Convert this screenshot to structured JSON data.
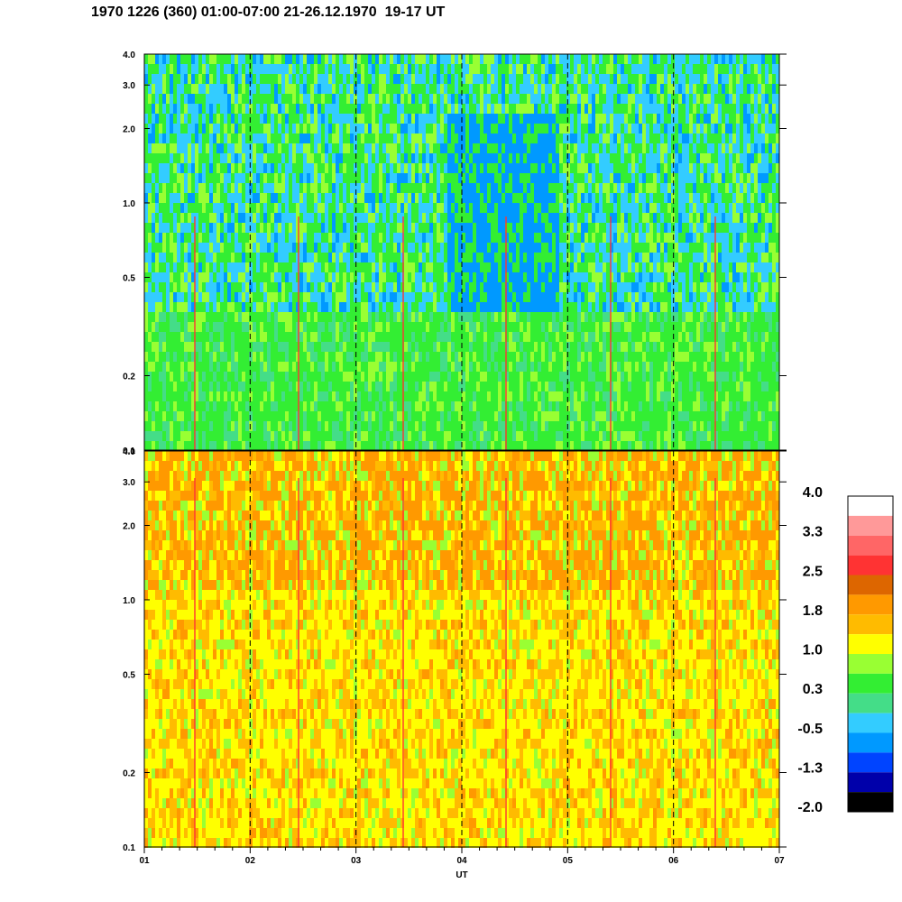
{
  "header": {
    "title": "1970 1226 (360) 01:00-07:00 21-26.12.1970  19-17 UT"
  },
  "chart_data": [
    {
      "type": "heatmap",
      "name": "upper-panel",
      "y_axis": {
        "scale": "log",
        "ylim": [
          0.1,
          4.0
        ],
        "ticks": [
          "0.1",
          "0.2",
          "0.5",
          "1.0",
          "2.0",
          "3.0",
          "4.0"
        ]
      },
      "x_axis": {
        "xlim": [
          "01",
          "07"
        ],
        "ticks": [
          "01",
          "02",
          "03",
          "04",
          "05",
          "06",
          "07"
        ],
        "label": "UT"
      },
      "dashed_verticals_at": [
        "02",
        "03",
        "04",
        "05",
        "06"
      ],
      "dominant_levels": [
        0.3,
        -0.5
      ],
      "note_values": "lower frequencies mostly level 0.3 (green), upper frequencies mixed -0.5 (cyan) with 1.0 spikes; blue patch near 04-05 around 0.5-2.0"
    },
    {
      "type": "heatmap",
      "name": "lower-panel",
      "y_axis": {
        "scale": "log",
        "ylim": [
          0.1,
          4.0
        ],
        "ticks": [
          "0.1",
          "0.2",
          "0.5",
          "1.0",
          "2.0",
          "3.0",
          "4.0"
        ]
      },
      "x_axis": {
        "xlim": [
          "01",
          "07"
        ],
        "ticks": [
          "01",
          "02",
          "03",
          "04",
          "05",
          "06",
          "07"
        ],
        "label": "UT"
      },
      "dashed_verticals_at": [
        "02",
        "03",
        "04",
        "05",
        "06"
      ],
      "dominant_levels": [
        1.0,
        1.8
      ],
      "note_values": "yellow (1.0) background with orange (1.8) bands; orange patches near 0.5 at ~01.1, ~02.6, ~03.3"
    }
  ],
  "colorbar": {
    "labels": [
      "4.0",
      "3.3",
      "2.5",
      "1.8",
      "1.0",
      "0.3",
      "-0.5",
      "-1.3",
      "-2.0"
    ],
    "colors": [
      "#ffffff",
      "#ff9999",
      "#ff6666",
      "#ff3333",
      "#dd6600",
      "#ff9900",
      "#ffbb00",
      "#ffff00",
      "#99ff33",
      "#33ee33",
      "#44dd88",
      "#33ccff",
      "#0099ff",
      "#0044ff",
      "#0000aa",
      "#000000"
    ]
  },
  "palette": {
    "upper": [
      "#33ee33",
      "#33ee33",
      "#44dd88",
      "#33ccff",
      "#99ff33",
      "#0099ff"
    ],
    "lower": [
      "#ffff00",
      "#ffff00",
      "#ffbb00",
      "#ff9900",
      "#99ff33",
      "#33ee33"
    ]
  }
}
